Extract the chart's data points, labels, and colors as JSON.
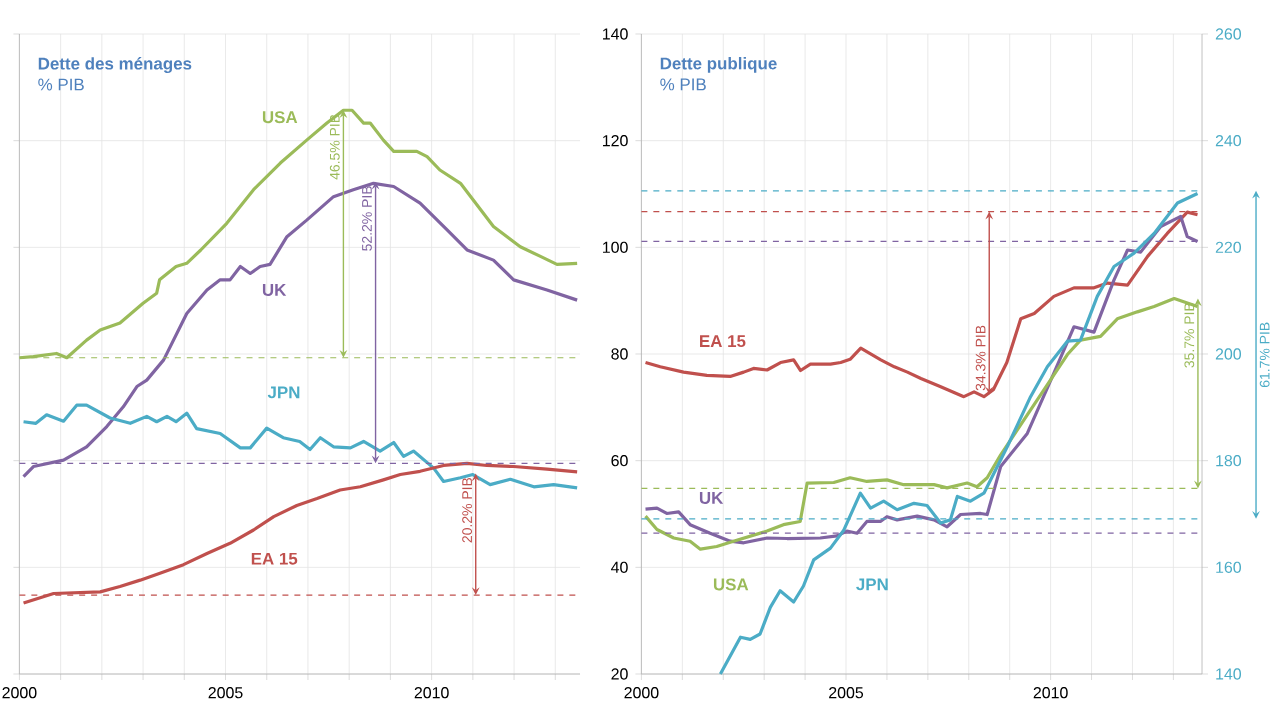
{
  "chart_data": [
    {
      "type": "line",
      "title": "Dette des ménages",
      "subtitle": "% PIB",
      "xlim": [
        2000,
        2013.6
      ],
      "xticks": [
        2000,
        {
          "value": 2001,
          "label": null
        },
        {
          "value": 2002,
          "label": null
        },
        {
          "value": 2003,
          "label": null
        },
        {
          "value": 2004,
          "label": null
        },
        2005,
        {
          "value": 2006,
          "label": null
        },
        {
          "value": 2007,
          "label": null
        },
        {
          "value": 2008,
          "label": null
        },
        {
          "value": 2009,
          "label": null
        },
        2010,
        {
          "value": 2011,
          "label": null
        },
        {
          "value": 2012,
          "label": null
        },
        {
          "value": 2013,
          "label": null
        }
      ],
      "ylim": [
        20,
        140
      ],
      "yticks": [
        20,
        40,
        60,
        80,
        100,
        120,
        140
      ],
      "tick_labels": "x",
      "grid": true,
      "series": [
        {
          "name": "USA",
          "color": "#9bbb59",
          "x": [
            2000.0,
            2000.34,
            2000.9,
            2001.15,
            2001.63,
            2001.96,
            2002.44,
            2003.0,
            2003.33,
            2003.4,
            2003.8,
            2004.06,
            2004.4,
            2005.03,
            2005.68,
            2006.33,
            2006.97,
            2007.46,
            2007.86,
            2008.07,
            2008.35,
            2008.51,
            2008.83,
            2009.08,
            2009.64,
            2009.89,
            2010.2,
            2010.7,
            2011.5,
            2012.15,
            2012.64,
            2013.04,
            2013.53
          ],
          "values": [
            79.3,
            79.5,
            80.1,
            79.3,
            82.6,
            84.5,
            85.8,
            89.5,
            91.4,
            93.9,
            96.4,
            97.0,
            99.5,
            104.5,
            110.8,
            115.8,
            120.1,
            123.3,
            125.7,
            125.7,
            123.3,
            123.3,
            120.1,
            118.0,
            118.0,
            117.0,
            114.5,
            112.0,
            103.9,
            100.1,
            98.3,
            96.8,
            97.0
          ]
        },
        {
          "name": "UK",
          "color": "#8064a2",
          "x": [
            2000.1,
            2000.34,
            2001.07,
            2001.63,
            2002.12,
            2002.52,
            2002.85,
            2003.09,
            2003.5,
            2004.06,
            2004.55,
            2004.87,
            2005.11,
            2005.36,
            2005.6,
            2005.84,
            2006.08,
            2006.49,
            2006.97,
            2007.62,
            2008.1,
            2008.59,
            2009.08,
            2009.72,
            2010.37,
            2010.86,
            2011.5,
            2011.99,
            2012.8,
            2013.53
          ],
          "values": [
            57.0,
            58.9,
            60.1,
            62.6,
            66.4,
            70.1,
            73.9,
            75.1,
            78.9,
            87.6,
            92.0,
            93.9,
            93.9,
            96.4,
            95.1,
            96.4,
            96.8,
            102.0,
            105.1,
            109.5,
            110.8,
            112.0,
            111.4,
            108.3,
            103.3,
            99.5,
            97.6,
            93.9,
            92.0,
            90.1
          ]
        },
        {
          "name": "JPN",
          "color": "#4bacc6",
          "x": [
            2000.1,
            2000.4,
            2000.66,
            2001.07,
            2001.39,
            2001.63,
            2002.2,
            2002.69,
            2003.09,
            2003.33,
            2003.58,
            2003.8,
            2004.06,
            2004.3,
            2004.87,
            2005.36,
            2005.6,
            2006.0,
            2006.4,
            2006.8,
            2007.05,
            2007.3,
            2007.62,
            2008.03,
            2008.35,
            2008.75,
            2009.08,
            2009.32,
            2009.56,
            2010.05,
            2010.29,
            2010.7,
            2011.0,
            2011.42,
            2011.91,
            2012.48,
            2012.96,
            2013.53
          ],
          "values": [
            67.3,
            67.0,
            68.6,
            67.4,
            70.4,
            70.4,
            68.0,
            67.0,
            68.3,
            67.3,
            68.3,
            67.3,
            68.9,
            66.0,
            65.1,
            62.4,
            62.4,
            66.1,
            64.3,
            63.6,
            62.1,
            64.3,
            62.6,
            62.4,
            63.6,
            61.8,
            63.4,
            60.8,
            61.8,
            58.6,
            56.1,
            56.8,
            57.4,
            55.5,
            56.5,
            55.1,
            55.5,
            54.9
          ]
        },
        {
          "name": "EA 15",
          "color": "#c0504d",
          "x": [
            2000.1,
            2000.83,
            2001.96,
            2002.44,
            2002.93,
            2003.41,
            2003.98,
            2004.55,
            2005.11,
            2005.68,
            2006.17,
            2006.73,
            2007.22,
            2007.78,
            2008.27,
            2008.83,
            2009.24,
            2009.72,
            2010.29,
            2010.86,
            2011.34,
            2011.99,
            2012.8,
            2013.53
          ],
          "values": [
            33.3,
            35.1,
            35.4,
            36.4,
            37.6,
            38.9,
            40.5,
            42.6,
            44.5,
            47.0,
            49.5,
            51.6,
            52.9,
            54.5,
            55.1,
            56.4,
            57.4,
            58.0,
            59.1,
            59.5,
            59.1,
            58.9,
            58.4,
            57.9
          ]
        }
      ],
      "ref_lines": [
        {
          "axis": "y",
          "value": 79.3,
          "color": "#9bbb59",
          "line_style": "dashed"
        },
        {
          "axis": "y",
          "value": 59.5,
          "color": "#8064a2",
          "line_style": "dashed"
        },
        {
          "axis": "y",
          "value": 34.8,
          "color": "#c0504d",
          "line_style": "dashed"
        }
      ],
      "annotations": [
        {
          "text": "46.5% PIB",
          "x": 2007.86,
          "y": 125.7
        },
        {
          "text": "52.2% PIB",
          "x": 2008.64,
          "y": 112.3
        },
        {
          "text": "20.2% PIB",
          "x": 2011.07,
          "y": 57.6
        }
      ]
    },
    {
      "type": "line",
      "title": "Dette publique",
      "subtitle": "% PIB",
      "xlim": [
        2000,
        2013.7
      ],
      "xticks": [
        2000,
        {
          "value": 2001,
          "label": null
        },
        {
          "value": 2002,
          "label": null
        },
        {
          "value": 2003,
          "label": null
        },
        {
          "value": 2004,
          "label": null
        },
        2005,
        {
          "value": 2006,
          "label": null
        },
        {
          "value": 2007,
          "label": null
        },
        {
          "value": 2008,
          "label": null
        },
        {
          "value": 2009,
          "label": null
        },
        2010,
        {
          "value": 2011,
          "label": null
        },
        {
          "value": 2012,
          "label": null
        },
        {
          "value": 2013,
          "label": null
        }
      ],
      "ylim": [
        20,
        140
      ],
      "yticks": [
        20,
        40,
        60,
        80,
        100,
        120,
        140
      ],
      "y2lim": [
        140,
        260
      ],
      "y2ticks": [
        140,
        160,
        180,
        200,
        220,
        240,
        260
      ],
      "grid": true,
      "series": [
        {
          "name": "EA 15",
          "color": "#c0504d",
          "x": [
            2000.1,
            2000.46,
            2001.03,
            2001.6,
            2002.17,
            2002.5,
            2002.74,
            2003.07,
            2003.4,
            2003.72,
            2003.89,
            2004.13,
            2004.62,
            2004.87,
            2005.1,
            2005.36,
            2005.85,
            2006.18,
            2006.5,
            2006.83,
            2007.3,
            2007.88,
            2008.13,
            2008.37,
            2008.6,
            2008.93,
            2009.27,
            2009.6,
            2010.08,
            2010.57,
            2011.06,
            2011.39,
            2011.88,
            2012.37,
            2012.85,
            2013.34,
            2013.59
          ],
          "values": [
            78.4,
            77.6,
            76.6,
            76.0,
            75.8,
            76.6,
            77.3,
            77.0,
            78.4,
            78.9,
            76.9,
            78.1,
            78.1,
            78.4,
            79.0,
            81.1,
            78.9,
            77.6,
            76.6,
            75.4,
            73.9,
            72.0,
            72.9,
            72.0,
            73.3,
            78.4,
            86.6,
            87.6,
            90.8,
            92.4,
            92.4,
            93.3,
            92.9,
            98.3,
            102.6,
            106.6,
            106.1
          ]
        },
        {
          "name": "UK",
          "color": "#8064a2",
          "x": [
            2000.1,
            2000.38,
            2000.62,
            2000.91,
            2001.19,
            2001.68,
            2002.17,
            2002.5,
            2003.07,
            2003.56,
            2004.37,
            2004.78,
            2005.02,
            2005.27,
            2005.51,
            2005.84,
            2006.0,
            2006.25,
            2006.74,
            2007.15,
            2007.47,
            2007.8,
            2008.29,
            2008.45,
            2008.78,
            2009.43,
            2010.08,
            2010.57,
            2011.06,
            2011.55,
            2011.88,
            2012.2,
            2012.69,
            2013.18,
            2013.34,
            2013.59
          ],
          "values": [
            50.9,
            51.1,
            50.1,
            50.4,
            48.0,
            46.4,
            44.9,
            44.6,
            45.5,
            45.4,
            45.5,
            45.9,
            46.8,
            46.4,
            48.6,
            48.6,
            49.5,
            48.9,
            49.6,
            48.9,
            47.6,
            49.9,
            50.1,
            49.9,
            58.9,
            65.1,
            76.4,
            85.1,
            84.1,
            93.9,
            99.5,
            99.1,
            103.9,
            105.8,
            102.0,
            101.1
          ]
        },
        {
          "name": "USA",
          "color": "#9bbb59",
          "x": [
            2000.1,
            2000.38,
            2000.79,
            2001.19,
            2001.44,
            2001.84,
            2002.25,
            2003.07,
            2003.47,
            2003.88,
            2004.05,
            2004.7,
            2005.1,
            2005.51,
            2006.0,
            2006.41,
            2007.15,
            2007.47,
            2007.96,
            2008.2,
            2008.45,
            2008.78,
            2009.43,
            2010.08,
            2010.41,
            2010.73,
            2011.22,
            2011.63,
            2012.12,
            2012.53,
            2013.02,
            2013.59
          ],
          "values": [
            49.6,
            47.1,
            45.5,
            44.9,
            43.4,
            43.9,
            44.9,
            46.8,
            48.0,
            48.6,
            55.8,
            55.9,
            56.8,
            56.1,
            56.4,
            55.5,
            55.5,
            54.9,
            55.8,
            55.1,
            56.8,
            61.1,
            68.6,
            76.1,
            79.9,
            82.6,
            83.3,
            86.6,
            87.9,
            88.9,
            90.4,
            88.9
          ]
        },
        {
          "name": "JPN",
          "color": "#4bacc6",
          "axis": "y2",
          "x": [
            2001.93,
            2002.42,
            2002.66,
            2002.9,
            2003.15,
            2003.39,
            2003.72,
            2003.96,
            2004.21,
            2004.62,
            2004.94,
            2005.35,
            2005.6,
            2005.92,
            2006.25,
            2006.66,
            2006.98,
            2007.31,
            2007.55,
            2007.72,
            2008.04,
            2008.37,
            2008.94,
            2009.51,
            2009.92,
            2010.41,
            2010.73,
            2011.14,
            2011.55,
            2012.04,
            2012.53,
            2013.1,
            2013.59
          ],
          "values": [
            140.0,
            146.9,
            146.5,
            147.5,
            152.5,
            155.6,
            153.5,
            156.5,
            161.4,
            163.6,
            166.9,
            173.9,
            171.1,
            172.4,
            170.8,
            172.0,
            171.6,
            168.3,
            168.9,
            173.3,
            172.4,
            173.9,
            182.6,
            192.0,
            197.6,
            202.4,
            202.6,
            210.8,
            216.4,
            218.9,
            222.6,
            228.3,
            230.1
          ]
        }
      ],
      "ref_lines": [
        {
          "axis": "y",
          "value": 106.7,
          "color": "#c0504d",
          "line_style": "dashed"
        },
        {
          "axis": "y",
          "value": 54.8,
          "color": "#9bbb59",
          "line_style": "dashed"
        },
        {
          "axis": "y2",
          "value": 169.1,
          "color": "#4bacc6",
          "line_style": "dashed"
        },
        {
          "axis": "y",
          "value": 101.1,
          "color": "#8064a2",
          "line_style": "dashed"
        },
        {
          "axis": "y",
          "value": 46.4,
          "color": "#8064a2",
          "line_style": "dashed"
        },
        {
          "axis": "y2",
          "value": 230.6,
          "color": "#4bacc6",
          "line_style": "dashed"
        }
      ],
      "annotations": [
        {
          "text": "34.3% PIB",
          "x": 2008.5,
          "y": 72.4
        },
        {
          "text": "35.7% PIB",
          "x": 2013.6,
          "y": 90.4
        },
        "61.7% PIB"
      ]
    }
  ]
}
